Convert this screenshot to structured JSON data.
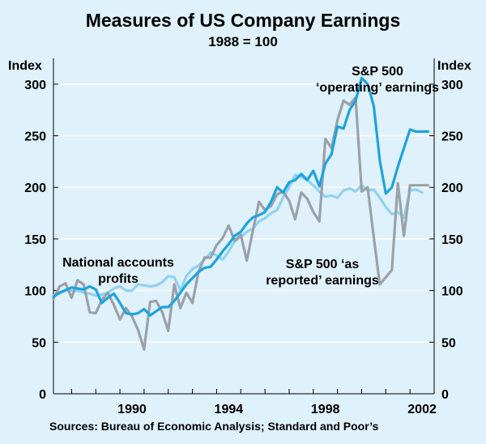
{
  "chart_data": {
    "type": "line",
    "title": "Measures of US Company Earnings",
    "subtitle": "1988 = 100",
    "ylabel_left": "Index",
    "ylabel_right": "Index",
    "source": "Sources: Bureau of Economic Analysis; Standard and Poor’s",
    "ylim": [
      0,
      325
    ],
    "xlim": [
      1987.25,
      2003.0
    ],
    "y_ticks": [
      0,
      50,
      100,
      150,
      200,
      250,
      300
    ],
    "x_ticks": [
      1990,
      1994,
      1998,
      2002
    ],
    "x_tick_labels": [
      "1990",
      "1994",
      "1998",
      "2002"
    ],
    "annotations": [
      {
        "lines": [
          "S&P 500",
          "‘operating’ earnings"
        ],
        "series": "sp500_operating"
      },
      {
        "lines": [
          "National accounts",
          "profits"
        ],
        "series": "national_accounts"
      },
      {
        "lines": [
          "S&P 500 ‘as",
          "reported’ earnings"
        ],
        "series": "sp500_reported"
      }
    ],
    "series": [
      {
        "name": "S&P 500 ‘operating’ earnings",
        "color": "#1fa3dd",
        "x": [
          1987.25,
          1987.5,
          1988,
          1988.5,
          1988.75,
          1989,
          1989.25,
          1989.5,
          1989.75,
          1990,
          1990.25,
          1990.5,
          1990.75,
          1991,
          1991.25,
          1991.5,
          1991.75,
          1992,
          1992.25,
          1992.5,
          1992.75,
          1993,
          1993.25,
          1993.5,
          1993.75,
          1994,
          1994.25,
          1994.5,
          1994.75,
          1995,
          1995.25,
          1995.5,
          1995.75,
          1996,
          1996.25,
          1996.5,
          1996.75,
          1997,
          1997.25,
          1997.5,
          1997.75,
          1998,
          1998.25,
          1998.5,
          1998.75,
          1999,
          1999.25,
          1999.5,
          1999.75,
          2000,
          2000.25,
          2000.5,
          2000.75,
          2001,
          2001.25,
          2001.5,
          2001.75,
          2002,
          2002.25,
          2002.5,
          2002.75
        ],
        "y": [
          94,
          98,
          103,
          101,
          104,
          101,
          88,
          93,
          97,
          88,
          78,
          77,
          78,
          82,
          76,
          80,
          84,
          84,
          90,
          98,
          106,
          112,
          118,
          122,
          123,
          130,
          138,
          145,
          153,
          157,
          165,
          171,
          173,
          176,
          186,
          200,
          195,
          205,
          207,
          213,
          207,
          216,
          201,
          223,
          232,
          259,
          257,
          275,
          284,
          306,
          300,
          279,
          226,
          194,
          200,
          220,
          238,
          256,
          254,
          254,
          254
        ]
      },
      {
        "name": "National accounts profits",
        "color": "#8fd2f1",
        "x": [
          1987.25,
          1987.5,
          1987.75,
          1988,
          1988.25,
          1988.5,
          1988.75,
          1989,
          1989.25,
          1989.5,
          1989.75,
          1990,
          1990.25,
          1990.5,
          1990.75,
          1991,
          1991.25,
          1991.5,
          1991.75,
          1992,
          1992.25,
          1992.5,
          1992.75,
          1993,
          1993.25,
          1993.5,
          1993.75,
          1994,
          1994.25,
          1994.5,
          1994.75,
          1995,
          1995.25,
          1995.5,
          1995.75,
          1996,
          1996.25,
          1996.5,
          1996.75,
          1997,
          1997.25,
          1997.5,
          1997.75,
          1998,
          1998.25,
          1998.5,
          1998.75,
          1999,
          1999.25,
          1999.5,
          1999.75,
          2000,
          2000.25,
          2000.5,
          2000.75,
          2001,
          2001.25,
          2001.5,
          2001.75,
          2002,
          2002.25,
          2002.5
        ],
        "y": [
          95,
          97,
          100,
          100,
          100,
          98,
          97,
          95,
          96,
          98,
          102,
          104,
          100,
          100,
          106,
          105,
          104,
          105,
          108,
          114,
          113,
          100,
          114,
          121,
          124,
          130,
          137,
          134,
          130,
          138,
          148,
          152,
          157,
          160,
          167,
          170,
          175,
          178,
          190,
          200,
          212,
          210,
          207,
          202,
          196,
          191,
          192,
          190,
          197,
          199,
          196,
          202,
          197,
          198,
          190,
          181,
          174,
          176,
          171,
          197,
          198,
          195
        ]
      },
      {
        "name": "S&P 500 ‘as reported’ earnings",
        "color": "#9ba1a8",
        "x": [
          1987.25,
          1987.5,
          1987.75,
          1988,
          1988.25,
          1988.5,
          1988.75,
          1989,
          1989.25,
          1989.5,
          1989.75,
          1990,
          1990.25,
          1990.5,
          1990.75,
          1991,
          1991.25,
          1991.5,
          1991.75,
          1992,
          1992.25,
          1992.5,
          1992.75,
          1993,
          1993.25,
          1993.5,
          1993.75,
          1994,
          1994.25,
          1994.5,
          1994.75,
          1995,
          1995.25,
          1995.5,
          1995.75,
          1996,
          1996.25,
          1996.5,
          1996.75,
          1997,
          1997.25,
          1997.5,
          1997.75,
          1998,
          1998.25,
          1998.5,
          1998.75,
          1999,
          1999.25,
          1999.5,
          1999.75,
          2000,
          2000.25,
          2000.5,
          2000.75,
          2001,
          2001.25,
          2001.5,
          2001.75,
          2002,
          2002.25,
          2002.5,
          2002.75
        ],
        "y": [
          92,
          104,
          107,
          93,
          110,
          106,
          79,
          78,
          91,
          98,
          86,
          72,
          83,
          75,
          62,
          43,
          89,
          90,
          79,
          61,
          106,
          83,
          98,
          88,
          118,
          132,
          132,
          144,
          151,
          163,
          148,
          154,
          129,
          158,
          186,
          178,
          182,
          193,
          196,
          187,
          169,
          195,
          189,
          176,
          167,
          247,
          238,
          265,
          284,
          280,
          287,
          196,
          200,
          152,
          106,
          113,
          120,
          204,
          153,
          202,
          202,
          202,
          202
        ]
      }
    ]
  }
}
